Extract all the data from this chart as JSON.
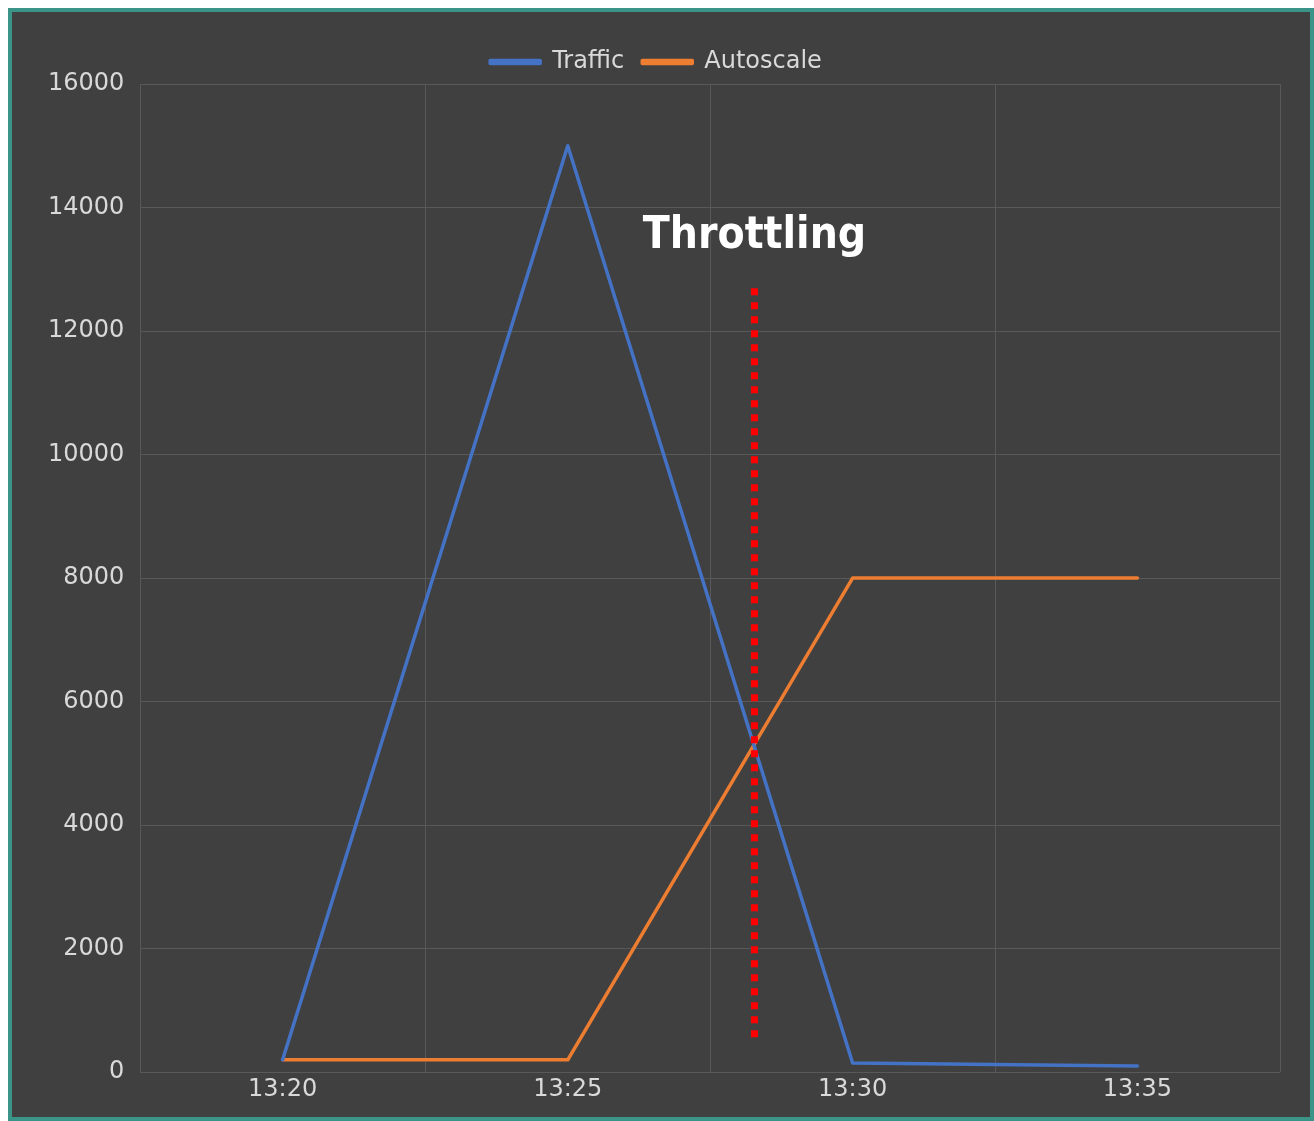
{
  "chart_data": {
    "type": "line",
    "x": [
      13.3333,
      13.4167,
      13.5,
      13.5833
    ],
    "series": [
      {
        "name": "Traffic",
        "color": "#4472c4",
        "values": [
          200,
          15000,
          150,
          100
        ]
      },
      {
        "name": "Autoscale",
        "color": "#ed7d31",
        "values": [
          200,
          200,
          8000,
          8000
        ]
      }
    ],
    "xlim": [
      13.2917,
      13.625
    ],
    "xticks": [
      {
        "value": 13.2917,
        "label": null
      },
      {
        "value": 13.3333,
        "label": "13:20"
      },
      {
        "value": 13.375,
        "label": null
      },
      {
        "value": 13.4167,
        "label": "13:25"
      },
      {
        "value": 13.4583,
        "label": null
      },
      {
        "value": 13.5,
        "label": "13:30"
      },
      {
        "value": 13.5417,
        "label": null
      },
      {
        "value": 13.5833,
        "label": "13:35"
      },
      {
        "value": 13.625,
        "label": null
      }
    ],
    "ylim": [
      0,
      16000
    ],
    "yticks": [
      0,
      2000,
      4000,
      6000,
      8000,
      10000,
      12000,
      14000,
      16000
    ],
    "grid": true,
    "legend": "top",
    "marker": "none",
    "line_style": "solid",
    "ref_lines": [
      {
        "axis": "x",
        "value": 13.4713,
        "label": "Throttling",
        "color": "#ff0000",
        "line_style": "dotted"
      }
    ]
  }
}
